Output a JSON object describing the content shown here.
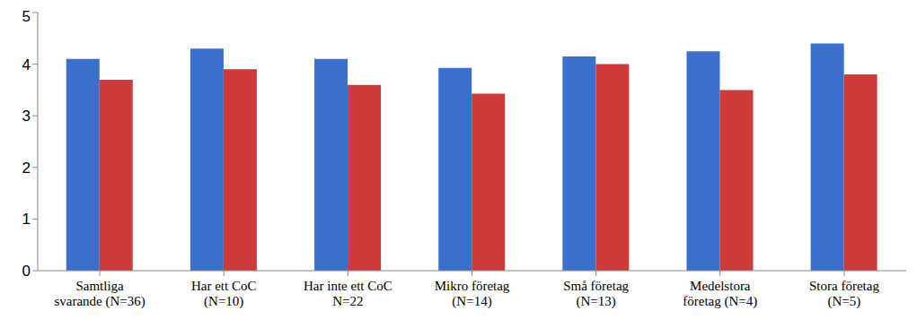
{
  "chart_data": {
    "type": "bar",
    "categories": [
      "Samtliga\nsvarande (N=36)",
      "Har ett CoC\n(N=10)",
      "Har inte ett CoC\nN=22",
      "Mikro företag\n(N=14)",
      "Små företag\n(N=13)",
      "Medelstora\nföretag (N=4)",
      "Stora företag\n(N=5)"
    ],
    "series": [
      {
        "color": "#3b6fce",
        "values": [
          4.1,
          4.3,
          4.1,
          3.93,
          4.15,
          4.25,
          4.4
        ]
      },
      {
        "color": "#cf3b39",
        "values": [
          3.7,
          3.9,
          3.6,
          3.43,
          4.0,
          3.5,
          3.8
        ]
      }
    ],
    "ylim": [
      0,
      5
    ],
    "yticks": [
      0,
      1,
      2,
      3,
      4,
      5
    ],
    "grid": false
  }
}
